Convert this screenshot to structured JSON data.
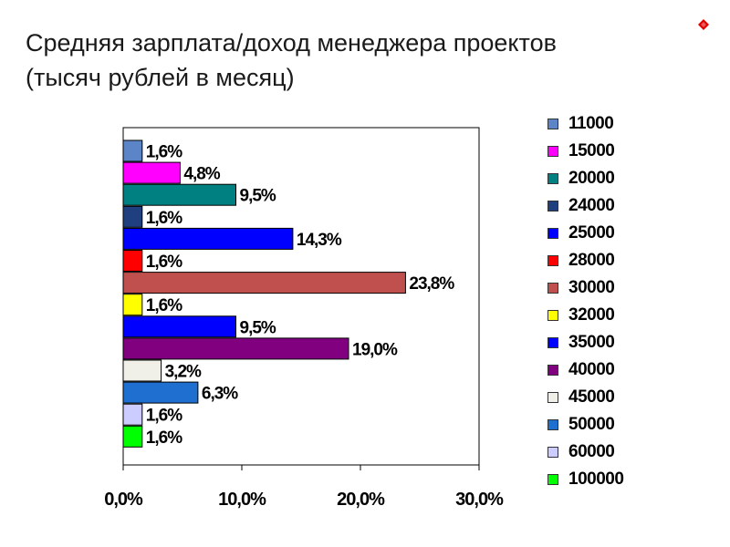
{
  "title": {
    "line1": "Средняя зарплата/доход менеджера проектов",
    "line2": "(тысяч рублей в месяц)"
  },
  "chart_data": {
    "type": "bar",
    "orientation": "horizontal",
    "title": "",
    "xlabel": "",
    "ylabel": "",
    "xlim": [
      0,
      30
    ],
    "x_ticks": [
      "0,0%",
      "10,0%",
      "20,0%",
      "30,0%"
    ],
    "grid": false,
    "legend_position": "right",
    "series": [
      {
        "name": "11000",
        "value": 1.6,
        "label": "1,6%",
        "color": "#5b85c7"
      },
      {
        "name": "15000",
        "value": 4.8,
        "label": "4,8%",
        "color": "#ff00ff"
      },
      {
        "name": "20000",
        "value": 9.5,
        "label": "9,5%",
        "color": "#008080"
      },
      {
        "name": "24000",
        "value": 1.6,
        "label": "1,6%",
        "color": "#1f3f7f"
      },
      {
        "name": "25000",
        "value": 14.3,
        "label": "14,3%",
        "color": "#0000ff"
      },
      {
        "name": "28000",
        "value": 1.6,
        "label": "1,6%",
        "color": "#ff0000"
      },
      {
        "name": "30000",
        "value": 23.8,
        "label": "23,8%",
        "color": "#c0504d"
      },
      {
        "name": "32000",
        "value": 1.6,
        "label": "1,6%",
        "color": "#ffff00"
      },
      {
        "name": "35000",
        "value": 9.5,
        "label": "9,5%",
        "color": "#0000ff"
      },
      {
        "name": "40000",
        "value": 19.0,
        "label": "19,0%",
        "color": "#800080"
      },
      {
        "name": "45000",
        "value": 3.2,
        "label": "3,2%",
        "color": "#f0efe8"
      },
      {
        "name": "50000",
        "value": 6.3,
        "label": "6,3%",
        "color": "#1f6fd0"
      },
      {
        "name": "60000",
        "value": 1.6,
        "label": "1,6%",
        "color": "#ccccff"
      },
      {
        "name": "100000",
        "value": 1.6,
        "label": "1,6%",
        "color": "#00ff00"
      }
    ]
  },
  "colors": {
    "corner_icon": "#e00000"
  },
  "icons": {
    "corner": "red-diamond-icon"
  }
}
